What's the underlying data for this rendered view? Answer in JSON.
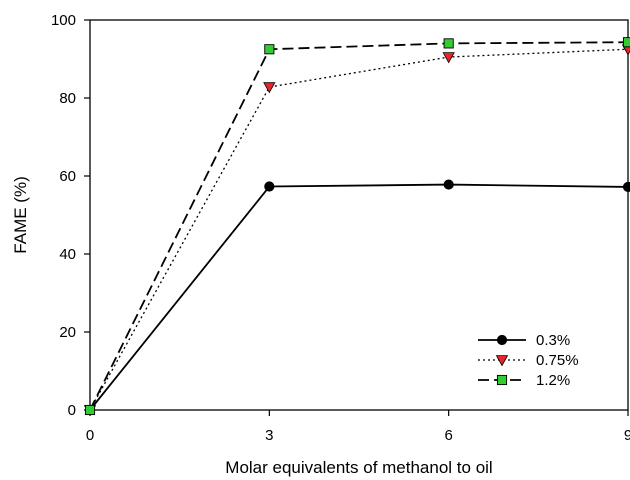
{
  "chart_data": {
    "type": "line",
    "title": "",
    "xlabel": "Molar equivalents of methanol to oil",
    "ylabel": "FAME (%)",
    "x": [
      0,
      3,
      6,
      9
    ],
    "xlim": [
      0,
      9
    ],
    "ylim": [
      0,
      100
    ],
    "xticks": [
      "0",
      "3",
      "6",
      "9"
    ],
    "yticks": [
      "0",
      "20",
      "40",
      "60",
      "80",
      "100"
    ],
    "grid": false,
    "legend_position": "bottom-right",
    "series": [
      {
        "name": "0.3%",
        "values": [
          0,
          57.3,
          57.8,
          57.2
        ],
        "line_style": "solid",
        "marker": "circle",
        "color": "#000000",
        "marker_color": "#000000"
      },
      {
        "name": "0.75%",
        "values": [
          0,
          82.8,
          90.5,
          92.5
        ],
        "line_style": "dotted",
        "marker": "triangle-down",
        "color": "#000000",
        "marker_color": "#e8262b"
      },
      {
        "name": "1.2%",
        "values": [
          0,
          92.5,
          94.0,
          94.3
        ],
        "line_style": "dashed",
        "marker": "square",
        "color": "#000000",
        "marker_color": "#33cc33"
      }
    ]
  }
}
